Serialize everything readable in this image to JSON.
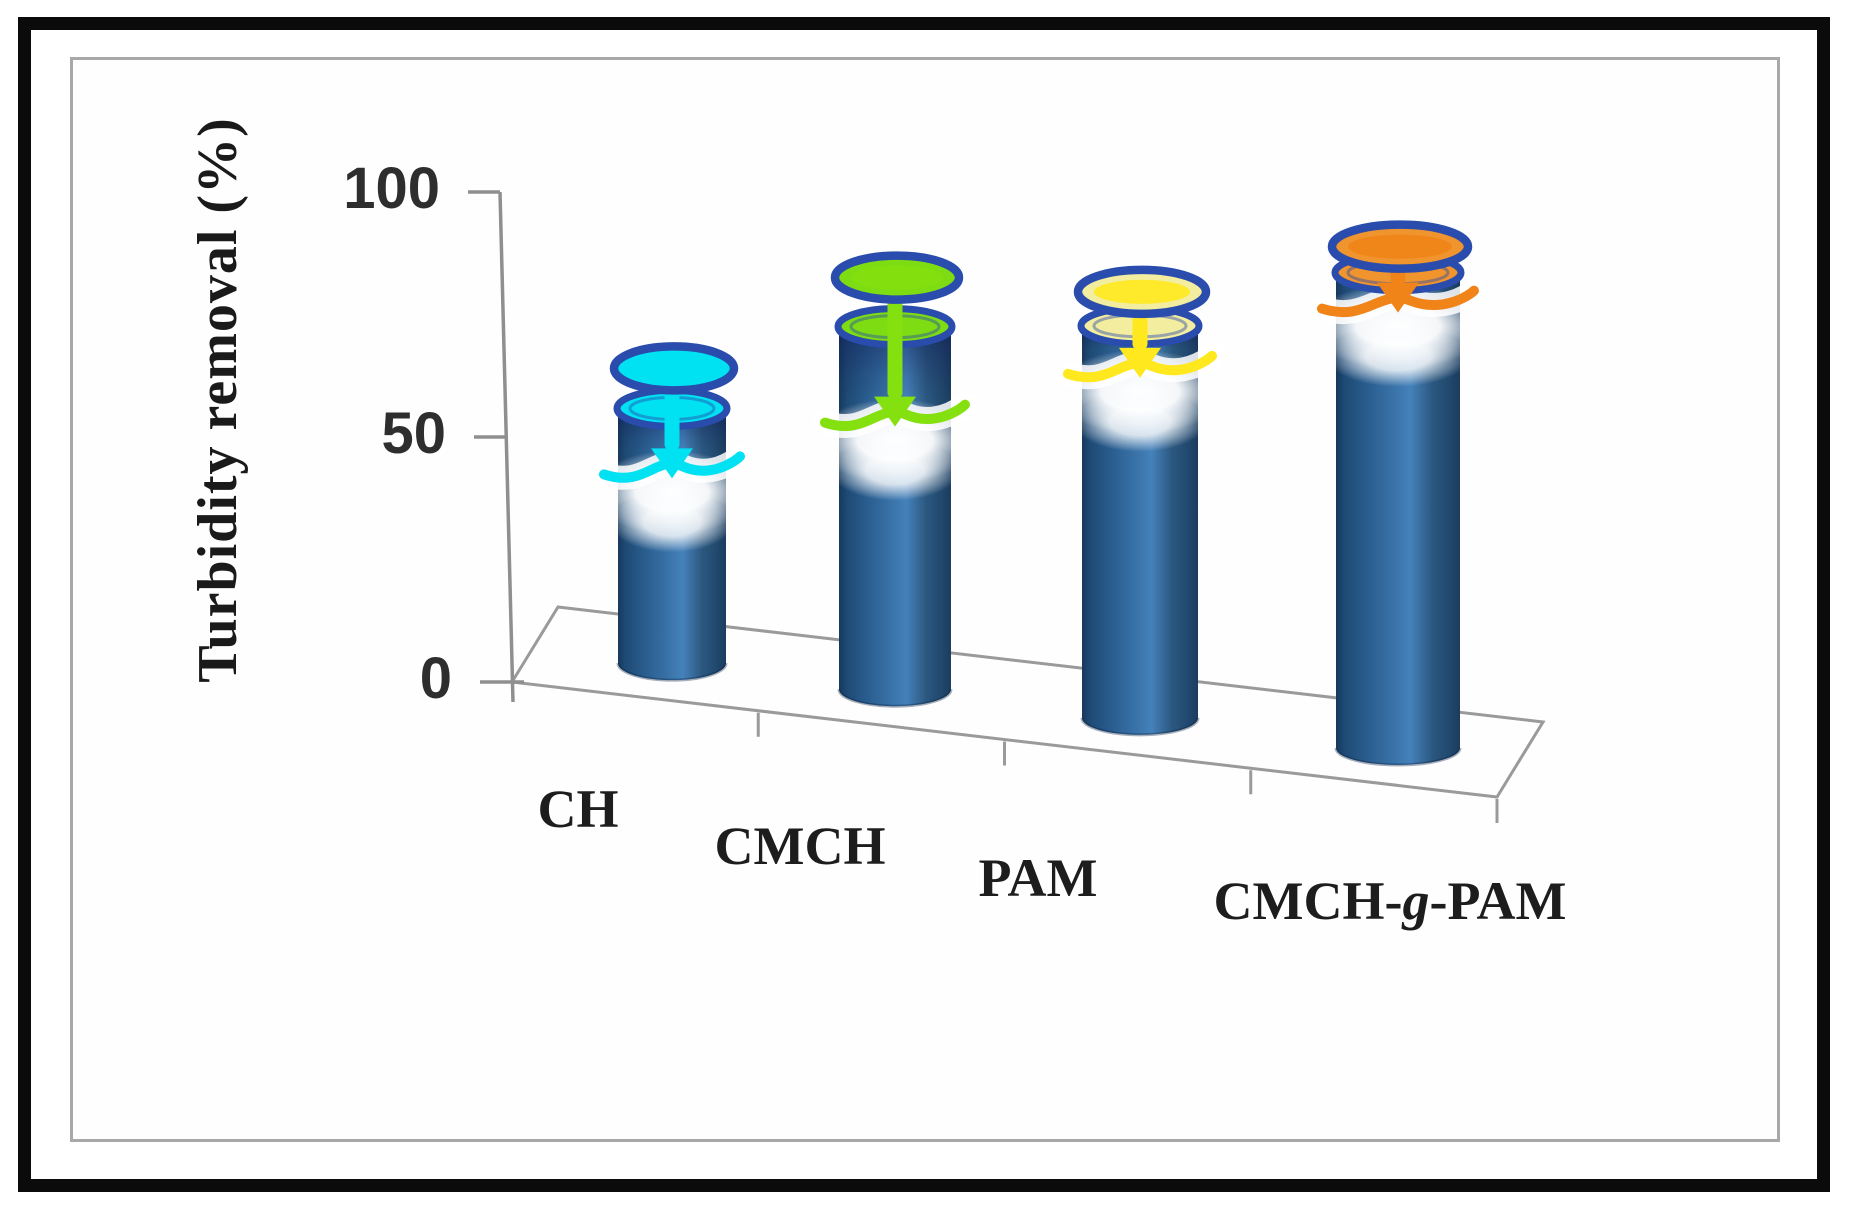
{
  "page": {
    "background": "#ffffff"
  },
  "frame": {
    "outer_color": "#0b0b0b",
    "inner_color": "#a8a8a8"
  },
  "chart_data": {
    "type": "bar",
    "bar_style": "3d-cylinder",
    "title": "",
    "xlabel": "",
    "ylabel": "Turbidity removal  (%)",
    "categories": [
      "CH",
      "CMCH",
      "PAM",
      "CMCH-g-PAM"
    ],
    "series": [
      {
        "name": "Turbidity removal (%)",
        "values": [
          52,
          74,
          80,
          97
        ]
      }
    ],
    "ylim": [
      0,
      100
    ],
    "yticks": [
      0,
      50,
      100
    ],
    "grid": false,
    "legend": false,
    "colors": {
      "cylinder": "#35679c",
      "cylinder_dark": "#16395c",
      "cylinder_light": "#4581ba",
      "axis": "#8f8f8f",
      "floor": "#9a9a9a",
      "tick_text": "#2e2e2e",
      "category_text": "#1d1d1d",
      "marker_stroke": "#2a4cac",
      "markers": [
        "#00e2f2",
        "#84e00e",
        "#ffe81e",
        "#f08418"
      ],
      "marker_caps": [
        "#00e2f2",
        "#7edc12",
        "#f3eda0",
        "#f0942e"
      ]
    }
  }
}
